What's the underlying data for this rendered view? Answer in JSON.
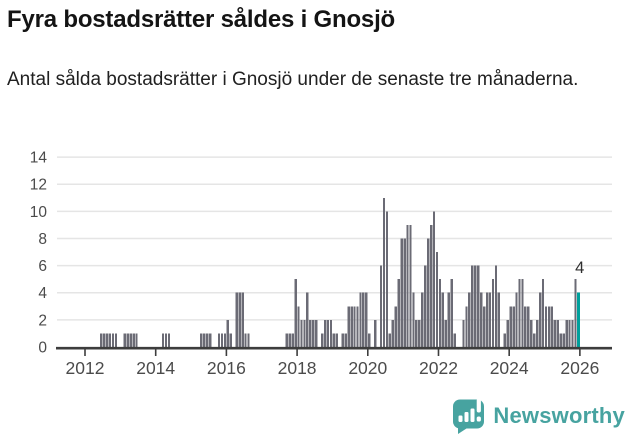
{
  "header": {
    "title": "Fyra bostadsrätter såldes i Gnosjö",
    "subtitle": "Antal sålda bostadsrätter i Gnosjö under de senaste tre månaderna."
  },
  "chart_data": {
    "type": "bar",
    "title": "Fyra bostadsrätter såldes i Gnosjö",
    "subtitle": "Antal sålda bostadsrätter i Gnosjö under de senaste tre månaderna.",
    "xlabel": "",
    "ylabel": "",
    "ylim": [
      0,
      14
    ],
    "yticks": [
      0,
      2,
      4,
      6,
      8,
      10,
      12,
      14
    ],
    "xticks": [
      2012,
      2014,
      2016,
      2018,
      2020,
      2022,
      2024,
      2026
    ],
    "grid": "horizontal",
    "x_unit": "month",
    "bar_color": "#6b6b75",
    "axis_color": "#3d3d3d",
    "gridline_color": "#e5e5e5",
    "tick_label_color": "#4b4b4b",
    "series": [
      {
        "year": 2012,
        "monthly": [
          0,
          0,
          0,
          0,
          0,
          1,
          1,
          1,
          1,
          1,
          1,
          0
        ]
      },
      {
        "year": 2013,
        "monthly": [
          0,
          1,
          1,
          1,
          1,
          1,
          0,
          0,
          0,
          0,
          0,
          0
        ]
      },
      {
        "year": 2014,
        "monthly": [
          0,
          0,
          1,
          1,
          1,
          0,
          0,
          0,
          0,
          0,
          0,
          0
        ]
      },
      {
        "year": 2015,
        "monthly": [
          0,
          0,
          0,
          1,
          1,
          1,
          1,
          0,
          0,
          1,
          1,
          1
        ]
      },
      {
        "year": 2016,
        "monthly": [
          2,
          1,
          0,
          4,
          4,
          4,
          1,
          1,
          0,
          0,
          0,
          0
        ]
      },
      {
        "year": 2017,
        "monthly": [
          0,
          0,
          0,
          0,
          0,
          0,
          0,
          0,
          1,
          1,
          1,
          5
        ]
      },
      {
        "year": 2018,
        "monthly": [
          3,
          2,
          2,
          4,
          2,
          2,
          2,
          0,
          1,
          2,
          2,
          2
        ]
      },
      {
        "year": 2019,
        "monthly": [
          1,
          1,
          0,
          1,
          1,
          3,
          3,
          3,
          3,
          4,
          4,
          4
        ]
      },
      {
        "year": 2020,
        "monthly": [
          1,
          0,
          2,
          0,
          6,
          11,
          10,
          1,
          2,
          3,
          5,
          8
        ]
      },
      {
        "year": 2021,
        "monthly": [
          8,
          9,
          9,
          4,
          2,
          2,
          4,
          6,
          8,
          9,
          10,
          7
        ]
      },
      {
        "year": 2022,
        "monthly": [
          5,
          4,
          2,
          4,
          5,
          1,
          0,
          0,
          2,
          3,
          4,
          6
        ]
      },
      {
        "year": 2023,
        "monthly": [
          6,
          6,
          4,
          3,
          4,
          4,
          5,
          6,
          4,
          0,
          1,
          2
        ]
      },
      {
        "year": 2024,
        "monthly": [
          3,
          3,
          4,
          5,
          5,
          3,
          3,
          2,
          1,
          2,
          4,
          5
        ]
      },
      {
        "year": 2025,
        "monthly": [
          3,
          3,
          3,
          2,
          2,
          1,
          1,
          2,
          2,
          2,
          5,
          4
        ]
      }
    ],
    "highlight": {
      "position": "last",
      "value": 4,
      "label": "4",
      "color": "#00a09c"
    }
  },
  "footer": {
    "brand": "Newsworthy",
    "brand_color": "#47a3a0"
  }
}
